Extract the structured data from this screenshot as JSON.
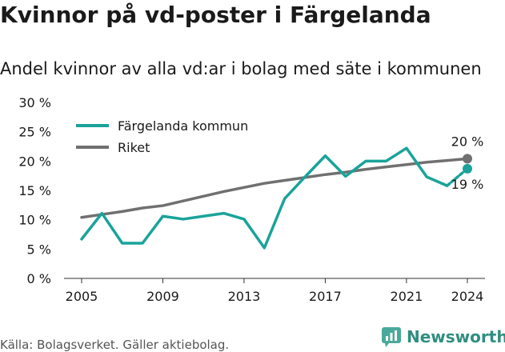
{
  "title": "Kvinnor på vd-poster i Färgelanda",
  "subtitle": "Andel kvinnor av alla vd:ar i bolag med säte i kommunen",
  "source": "Källa: Bolagsverket. Gäller aktiebolag.",
  "brand": "Newsworthy",
  "colors": {
    "fargelanda": "#1aa39a",
    "riket": "#707070"
  },
  "chart_data": {
    "type": "line",
    "x": [
      2005,
      2006,
      2007,
      2008,
      2009,
      2010,
      2011,
      2012,
      2013,
      2014,
      2015,
      2016,
      2017,
      2018,
      2019,
      2020,
      2021,
      2022,
      2023,
      2024
    ],
    "series": [
      {
        "name": "Färgelanda kommun",
        "values": [
          6.7,
          11.1,
          6.0,
          6.0,
          10.6,
          10.1,
          10.6,
          11.1,
          10.1,
          5.2,
          13.6,
          17.3,
          20.9,
          17.4,
          20.0,
          20.0,
          22.2,
          17.3,
          15.8,
          18.7
        ]
      },
      {
        "name": "Riket",
        "values": [
          10.4,
          10.9,
          11.4,
          12.0,
          12.4,
          13.2,
          14.0,
          14.8,
          15.5,
          16.2,
          16.7,
          17.2,
          17.7,
          18.1,
          18.6,
          19.0,
          19.4,
          19.8,
          20.1,
          20.4
        ]
      }
    ],
    "xticks": [
      2005,
      2009,
      2013,
      2017,
      2021,
      2024
    ],
    "yticks": [
      0,
      5,
      10,
      15,
      20,
      25,
      30
    ],
    "ytick_labels": [
      "0 %",
      "5 %",
      "10 %",
      "15 %",
      "20 %",
      "25 %",
      "30 %"
    ],
    "ylim": [
      0,
      30
    ],
    "xlim": [
      2005,
      2024
    ],
    "end_labels": {
      "riket": "20 %",
      "fargelanda": "19 %"
    },
    "legend_position": "top-left",
    "grid": false
  }
}
